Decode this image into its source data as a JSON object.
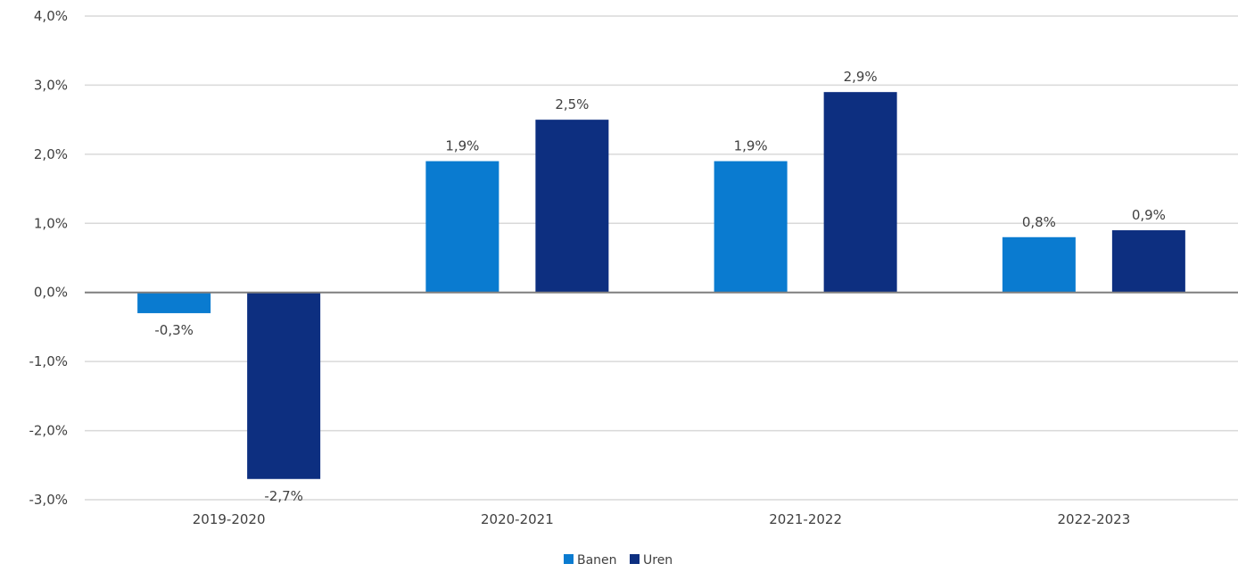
{
  "chart_data": {
    "type": "bar",
    "title": "",
    "xlabel": "",
    "ylabel": "",
    "categories": [
      "2019-2020",
      "2020-2021",
      "2021-2022",
      "2022-2023"
    ],
    "series": [
      {
        "name": "Banen",
        "values": [
          -0.3,
          1.9,
          1.9,
          0.8
        ],
        "labels": [
          "-0,3%",
          "1,9%",
          "1,9%",
          "0,8%"
        ],
        "color": "#0a7bd0"
      },
      {
        "name": "Uren",
        "values": [
          -2.7,
          2.5,
          2.9,
          0.9
        ],
        "labels": [
          "-2,7%",
          "2,5%",
          "2,9%",
          "0,9%"
        ],
        "color": "#0d2f80"
      }
    ],
    "ylim": [
      -3.0,
      4.0
    ],
    "yticks": [
      4.0,
      3.0,
      2.0,
      1.0,
      0.0,
      -1.0,
      -2.0,
      -3.0
    ],
    "ytick_labels": [
      "4,0%",
      "3,0%",
      "2,0%",
      "1,0%",
      "0,0%",
      "-1,0%",
      "-2,0%",
      "-3,0%"
    ],
    "grid": true,
    "legend_position": "bottom-center"
  }
}
